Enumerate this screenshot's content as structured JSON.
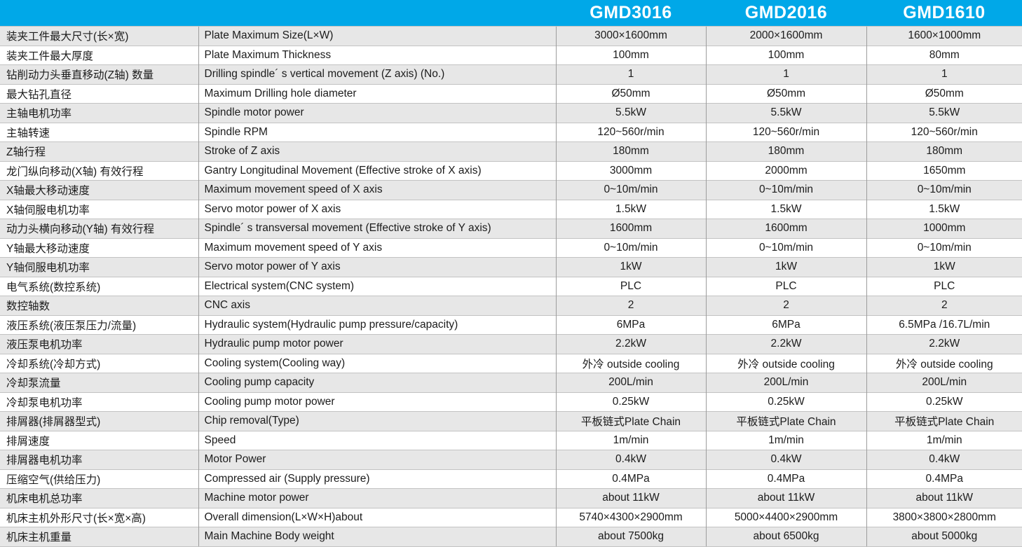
{
  "table": {
    "columns": [
      "",
      "",
      "GMD3016",
      "GMD2016",
      "GMD1610"
    ],
    "rows": [
      {
        "cn": "装夹工件最大尺寸(长×宽)",
        "en": "Plate Maximum Size(L×W)",
        "values": [
          "3000×1600mm",
          "2000×1600mm",
          "1600×1000mm"
        ]
      },
      {
        "cn": "装夹工件最大厚度",
        "en": "Plate Maximum Thickness",
        "values": [
          "100mm",
          "100mm",
          "80mm"
        ]
      },
      {
        "cn": "钻削动力头垂直移动(Z轴)  数量",
        "en": "Drilling spindle´ s vertical movement (Z axis) (No.)",
        "values": [
          "1",
          "1",
          "1"
        ]
      },
      {
        "cn": "最大钻孔直径",
        "en": "Maximum Drilling hole diameter",
        "values": [
          "Ø50mm",
          "Ø50mm",
          "Ø50mm"
        ]
      },
      {
        "cn": "主轴电机功率",
        "en": "Spindle motor power",
        "values": [
          "5.5kW",
          "5.5kW",
          "5.5kW"
        ]
      },
      {
        "cn": "主轴转速",
        "en": "Spindle RPM",
        "values": [
          "120~560r/min",
          "120~560r/min",
          "120~560r/min"
        ]
      },
      {
        "cn": "Z轴行程",
        "en": "Stroke of Z axis",
        "values": [
          "180mm",
          "180mm",
          "180mm"
        ]
      },
      {
        "cn": "龙门纵向移动(X轴) 有效行程",
        "en": "Gantry Longitudinal Movement  (Effective stroke of X axis)",
        "values": [
          "3000mm",
          "2000mm",
          "1650mm"
        ]
      },
      {
        "cn": "X轴最大移动速度",
        "en": "Maximum movement speed of X axis",
        "values": [
          "0~10m/min",
          "0~10m/min",
          "0~10m/min"
        ]
      },
      {
        "cn": "X轴伺服电机功率",
        "en": "Servo motor power of X axis",
        "values": [
          "1.5kW",
          "1.5kW",
          "1.5kW"
        ]
      },
      {
        "cn": "动力头横向移动(Y轴) 有效行程",
        "en": "Spindle´ s transversal movement (Effective stroke of Y axis)",
        "values": [
          "1600mm",
          "1600mm",
          "1000mm"
        ]
      },
      {
        "cn": "Y轴最大移动速度",
        "en": "Maximum movement speed of Y axis",
        "values": [
          "0~10m/min",
          "0~10m/min",
          "0~10m/min"
        ]
      },
      {
        "cn": "Y轴伺服电机功率",
        "en": "Servo motor power of Y axis",
        "values": [
          "1kW",
          "1kW",
          "1kW"
        ]
      },
      {
        "cn": "电气系统(数控系统)",
        "en": "Electrical system(CNC system)",
        "values": [
          "PLC",
          "PLC",
          "PLC"
        ]
      },
      {
        "cn": "数控轴数",
        "en": "CNC axis",
        "values": [
          "2",
          "2",
          "2"
        ]
      },
      {
        "cn": "液压系统(液压泵压力/流量)",
        "en": "Hydraulic system(Hydraulic pump pressure/capacity)",
        "values": [
          "6MPa",
          "6MPa",
          "6.5MPa /16.7L/min"
        ]
      },
      {
        "cn": "液压泵电机功率",
        "en": "Hydraulic pump motor power",
        "values": [
          "2.2kW",
          "2.2kW",
          "2.2kW"
        ]
      },
      {
        "cn": "冷却系统(冷却方式)",
        "en": "Cooling system(Cooling way)",
        "values": [
          "外冷 outside cooling",
          "外冷 outside cooling",
          "外冷 outside cooling"
        ]
      },
      {
        "cn": "冷却泵流量",
        "en": "Cooling pump capacity",
        "values": [
          "200L/min",
          "200L/min",
          "200L/min"
        ]
      },
      {
        "cn": "冷却泵电机功率",
        "en": "Cooling pump motor power",
        "values": [
          "0.25kW",
          "0.25kW",
          "0.25kW"
        ]
      },
      {
        "cn": "排屑器(排屑器型式)",
        "en": "Chip removal(Type)",
        "values": [
          "平板链式Plate Chain",
          "平板链式Plate Chain",
          "平板链式Plate Chain"
        ]
      },
      {
        "cn": "排屑速度",
        "en": "Speed",
        "values": [
          "1m/min",
          "1m/min",
          "1m/min"
        ]
      },
      {
        "cn": "排屑器电机功率",
        "en": "Motor Power",
        "values": [
          "0.4kW",
          "0.4kW",
          "0.4kW"
        ]
      },
      {
        "cn": "压缩空气(供给压力)",
        "en": "Compressed air (Supply pressure)",
        "values": [
          "0.4MPa",
          "0.4MPa",
          "0.4MPa"
        ]
      },
      {
        "cn": "机床电机总功率",
        "en": "Machine motor power",
        "values": [
          "about 11kW",
          "about 11kW",
          "about 11kW"
        ]
      },
      {
        "cn": "机床主机外形尺寸(长×宽×高)",
        "en": "Overall dimension(L×W×H)about",
        "values": [
          "5740×4300×2900mm",
          "5000×4400×2900mm",
          "3800×3800×2800mm"
        ]
      },
      {
        "cn": "机床主机重量",
        "en": "Main Machine Body weight",
        "values": [
          "about 7500kg",
          "about 6500kg",
          "about 5000kg"
        ]
      }
    ]
  },
  "colors": {
    "header_bg": "#00A8E8",
    "header_text": "#ffffff",
    "row_stripe": "#e7e7e7",
    "row_plain": "#ffffff",
    "grid_horizontal": "#c3c3c3",
    "grid_vertical": "#9d9d9d",
    "body_text": "#1c1c1c"
  }
}
